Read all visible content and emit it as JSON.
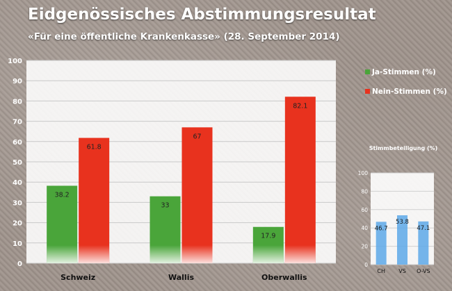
{
  "title": "Eidgenössisches Abstimmungsresultat",
  "subtitle": "«Für eine öffentliche Krankenkasse» (28. September 2014)",
  "colors": {
    "ja": "#4aa53a",
    "nein": "#e8321e",
    "turnout": "#5da8e8"
  },
  "chart_data": [
    {
      "type": "bar",
      "categories": [
        "Schweiz",
        "Wallis",
        "Oberwallis"
      ],
      "series": [
        {
          "name": "Ja-Stimmen (%)",
          "values": [
            38.2,
            33,
            17.9
          ],
          "labels": [
            "38.2",
            "33",
            "17.9"
          ]
        },
        {
          "name": "Nein-Stimmen (%)",
          "values": [
            61.8,
            67,
            82.1
          ],
          "labels": [
            "61.8",
            "67",
            "82.1"
          ]
        }
      ],
      "ylim": [
        0,
        100
      ],
      "yticks": [
        "0",
        "10",
        "20",
        "30",
        "40",
        "50",
        "60",
        "70",
        "80",
        "90",
        "100"
      ],
      "grid": true,
      "legend": "right"
    },
    {
      "type": "bar",
      "title": "Stimmbeteiligung (%)",
      "categories": [
        "CH",
        "VS",
        "O-VS"
      ],
      "values": [
        46.7,
        53.8,
        47.1
      ],
      "labels": [
        "46.7",
        "53.8",
        "47.1"
      ],
      "ylim": [
        0,
        100
      ],
      "yticks": [
        "0",
        "20",
        "40",
        "60",
        "80",
        "100"
      ],
      "grid": true
    }
  ]
}
